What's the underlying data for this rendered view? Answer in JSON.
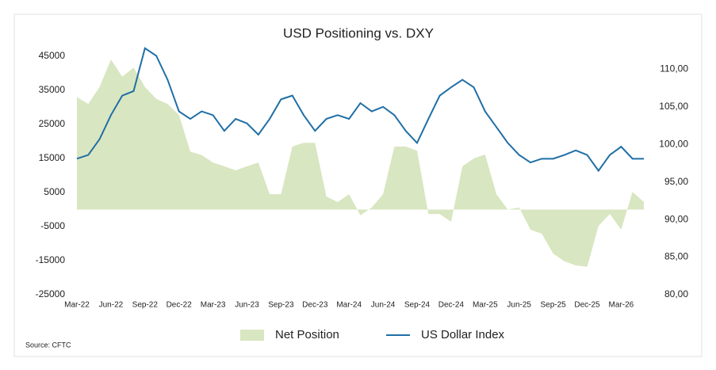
{
  "chart_data": {
    "type": "combo",
    "title": "USD Positioning vs. DXY",
    "source": "Source: CFTC",
    "categories": [
      "Mar-22",
      null,
      null,
      "Jun-22",
      null,
      null,
      "Sep-22",
      null,
      null,
      "Dec-22",
      null,
      null,
      "Mar-23",
      null,
      null,
      "Jun-23",
      null,
      null,
      "Sep-23",
      null,
      null,
      "Dec-23",
      null,
      null,
      "Mar-24",
      null,
      null,
      "Jun-24",
      null,
      null,
      "Sep-24",
      null,
      null,
      "Dec-24",
      null,
      null,
      "Mar-25",
      null,
      null,
      "Jun-25",
      null,
      null,
      "Sep-25",
      null,
      null,
      "Dec-25",
      null,
      null,
      "Mar-26",
      null,
      null
    ],
    "series": [
      {
        "name": "Net Position",
        "type": "area",
        "color": "#d8e6c1",
        "axis": "y",
        "values": [
          33000,
          31000,
          36000,
          44000,
          39000,
          41700,
          36000,
          32500,
          31000,
          27800,
          17000,
          16000,
          13800,
          12700,
          11500,
          12700,
          13800,
          4500,
          4500,
          18500,
          19600,
          19600,
          3800,
          2200,
          4500,
          -1700,
          600,
          4500,
          18500,
          18500,
          17300,
          -1300,
          -1300,
          -3600,
          12700,
          15000,
          16200,
          4500,
          0,
          600,
          -5900,
          -7100,
          -12900,
          -15200,
          -16400,
          -16800,
          -4800,
          -1300,
          -5900,
          5200,
          2200
        ]
      },
      {
        "name": "US Dollar Index",
        "type": "line",
        "color": "#1f6fa5",
        "axis": "y2",
        "values": [
          98.1,
          98.6,
          100.7,
          103.9,
          106.5,
          107.1,
          112.8,
          111.8,
          108.6,
          104.4,
          103.4,
          104.4,
          103.9,
          101.8,
          103.4,
          102.8,
          101.3,
          103.4,
          106.0,
          106.5,
          103.9,
          101.8,
          103.4,
          103.9,
          103.4,
          105.5,
          104.4,
          105.0,
          103.9,
          101.8,
          100.2,
          103.4,
          106.5,
          107.6,
          108.6,
          107.6,
          104.4,
          102.3,
          100.2,
          98.6,
          97.6,
          98.1,
          98.1,
          98.6,
          99.2,
          98.6,
          96.5,
          98.6,
          99.7,
          98.1,
          98.1
        ]
      }
    ],
    "ylim": [
      -25000,
      50000
    ],
    "yticks": [
      -25000,
      -15000,
      -5000,
      5000,
      15000,
      25000,
      35000,
      45000
    ],
    "y2lim": [
      80,
      114
    ],
    "y2ticks": [
      {
        "value": 80,
        "label": "80,00"
      },
      {
        "value": 85,
        "label": "85,00"
      },
      {
        "value": 90,
        "label": "90,00"
      },
      {
        "value": 95,
        "label": "95,00"
      },
      {
        "value": 100,
        "label": "100,00"
      },
      {
        "value": 105,
        "label": "105,00"
      },
      {
        "value": 110,
        "label": "110,00"
      }
    ],
    "legend": "bottom"
  }
}
